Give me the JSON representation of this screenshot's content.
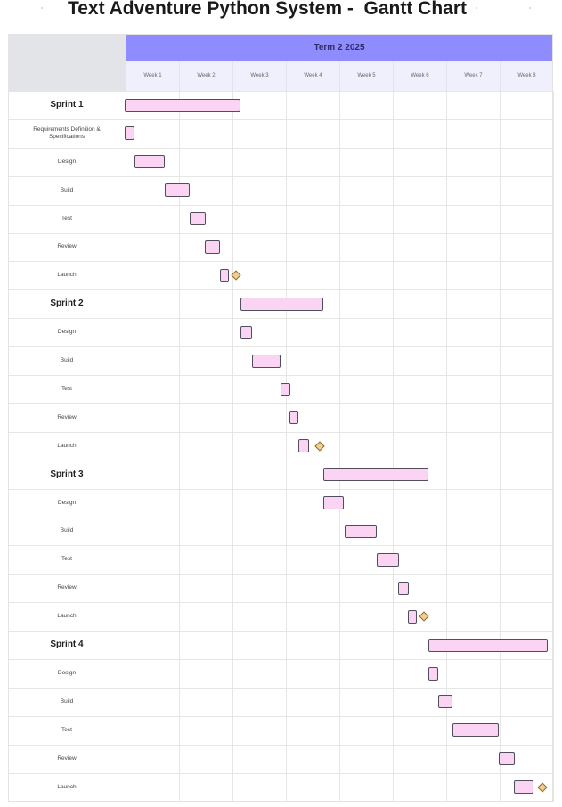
{
  "title": "Text Adventure Python System -  Gantt Chart",
  "term_label": "Term 2 2025",
  "weeks": [
    "Week 1",
    "Week 2",
    "Week 3",
    "Week 4",
    "Week 5",
    "Week 6",
    "Week 7",
    "Week 8"
  ],
  "colors": {
    "header": "#8e8cff",
    "bar_fill": "#fbd3f3",
    "bar_border": "#4e4e5e",
    "milestone": "#f2cd8c"
  },
  "chart_data": {
    "type": "gantt",
    "time_unit": "week",
    "x_range": [
      0,
      8
    ],
    "rows": [
      {
        "label": "Sprint 1",
        "kind": "sprint",
        "start": 0.0,
        "end": 2.16
      },
      {
        "label": "Requirements Definition & Specifications",
        "kind": "task",
        "start": 0.0,
        "end": 0.18
      },
      {
        "label": "Design",
        "kind": "task",
        "start": 0.18,
        "end": 0.75
      },
      {
        "label": "Build",
        "kind": "task",
        "start": 0.75,
        "end": 1.22
      },
      {
        "label": "Test",
        "kind": "task",
        "start": 1.22,
        "end": 1.52
      },
      {
        "label": "Review",
        "kind": "task",
        "start": 1.5,
        "end": 1.78
      },
      {
        "label": "Launch",
        "kind": "task",
        "start": 1.78,
        "end": 1.95,
        "milestone": 2.07
      },
      {
        "label": "Sprint 2",
        "kind": "sprint",
        "start": 2.16,
        "end": 3.72
      },
      {
        "label": "Design",
        "kind": "task",
        "start": 2.16,
        "end": 2.38
      },
      {
        "label": "Build",
        "kind": "task",
        "start": 2.38,
        "end": 2.92
      },
      {
        "label": "Test",
        "kind": "task",
        "start": 2.92,
        "end": 3.1
      },
      {
        "label": "Review",
        "kind": "task",
        "start": 3.08,
        "end": 3.25
      },
      {
        "label": "Launch",
        "kind": "task",
        "start": 3.25,
        "end": 3.45,
        "milestone": 3.64
      },
      {
        "label": "Sprint 3",
        "kind": "sprint",
        "start": 3.72,
        "end": 5.68
      },
      {
        "label": "Design",
        "kind": "task",
        "start": 3.72,
        "end": 4.1
      },
      {
        "label": "Build",
        "kind": "task",
        "start": 4.12,
        "end": 4.72
      },
      {
        "label": "Test",
        "kind": "task",
        "start": 4.72,
        "end": 5.13
      },
      {
        "label": "Review",
        "kind": "task",
        "start": 5.12,
        "end": 5.32
      },
      {
        "label": "Launch",
        "kind": "task",
        "start": 5.3,
        "end": 5.42,
        "milestone": 5.58
      },
      {
        "label": "Sprint 4",
        "kind": "sprint",
        "start": 5.68,
        "end": 7.92
      },
      {
        "label": "Design",
        "kind": "task",
        "start": 5.68,
        "end": 5.87
      },
      {
        "label": "Build",
        "kind": "task",
        "start": 5.87,
        "end": 6.13
      },
      {
        "label": "Test",
        "kind": "task",
        "start": 6.13,
        "end": 7.0
      },
      {
        "label": "Review",
        "kind": "task",
        "start": 7.0,
        "end": 7.3
      },
      {
        "label": "Launch",
        "kind": "task",
        "start": 7.28,
        "end": 7.65,
        "milestone": 7.8
      }
    ]
  }
}
